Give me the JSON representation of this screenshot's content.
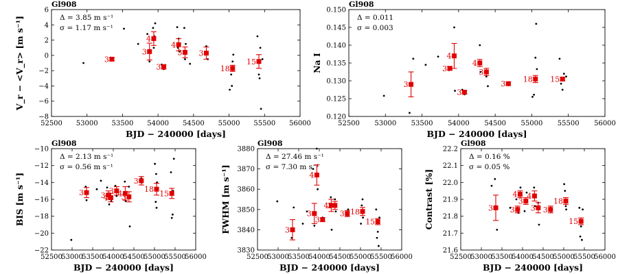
{
  "figure": {
    "xlabel_common": "BJD − 240000 [days]"
  },
  "chart_data": [
    {
      "type": "scatter",
      "title": "Gl908",
      "ylabel": "V_r − <V_r> [m s⁻¹]",
      "xlim": [
        52500,
        56000
      ],
      "ylim": [
        -8,
        6
      ],
      "xticks": [
        52500,
        53000,
        53500,
        54000,
        54500,
        55000,
        55500,
        56000
      ],
      "yticks": [
        -8,
        -6,
        -4,
        -2,
        0,
        2,
        4,
        6
      ],
      "xticklabels": [
        "52500",
        "53000",
        "53500",
        "54000",
        "54500",
        "55000",
        "55500",
        "56000"
      ],
      "yticklabels": [
        "−8",
        "−6",
        "−4",
        "−2",
        "0",
        "2",
        "4",
        "6"
      ],
      "xlabel": "BJD − 240000 [days]",
      "annotations": [
        "Δ = 3.85 m s⁻¹",
        "σ = 1.17 m s⁻¹"
      ],
      "epochs": [
        {
          "x": 53350,
          "y": -0.5,
          "err": 0.2,
          "label": "3"
        },
        {
          "x": 53880,
          "y": 0.5,
          "err": 1.1,
          "label": "3"
        },
        {
          "x": 53940,
          "y": 2.2,
          "err": 0.9,
          "label": "4"
        },
        {
          "x": 54080,
          "y": -1.5,
          "err": 0.3,
          "label": "3"
        },
        {
          "x": 54290,
          "y": 1.4,
          "err": 0.8,
          "label": "4"
        },
        {
          "x": 54380,
          "y": 0.4,
          "err": 0.7,
          "label": "3"
        },
        {
          "x": 54680,
          "y": 0.3,
          "err": 0.8,
          "label": "3"
        },
        {
          "x": 55050,
          "y": -1.7,
          "err": 0.4,
          "label": "18"
        },
        {
          "x": 55420,
          "y": -0.8,
          "err": 0.9,
          "label": "15"
        }
      ],
      "points": [
        [
          52950,
          -1.0
        ],
        [
          53330,
          -0.3
        ],
        [
          53350,
          -0.6
        ],
        [
          53520,
          3.5
        ],
        [
          53720,
          1.5
        ],
        [
          53850,
          2.8
        ],
        [
          53860,
          0.5
        ],
        [
          53880,
          -0.8
        ],
        [
          53930,
          3.6
        ],
        [
          53940,
          1.0
        ],
        [
          53950,
          2.5
        ],
        [
          53960,
          4.2
        ],
        [
          54050,
          -1.2
        ],
        [
          54080,
          -1.8
        ],
        [
          54100,
          -1.4
        ],
        [
          54270,
          3.7
        ],
        [
          54280,
          1.0
        ],
        [
          54290,
          2.2
        ],
        [
          54300,
          0.5
        ],
        [
          54370,
          3.6
        ],
        [
          54380,
          -0.5
        ],
        [
          54390,
          1.5
        ],
        [
          54450,
          -1.1
        ],
        [
          54680,
          1.2
        ],
        [
          54700,
          -0.5
        ],
        [
          55010,
          -4.5
        ],
        [
          55030,
          -2.5
        ],
        [
          55040,
          -4.0
        ],
        [
          55050,
          -0.8
        ],
        [
          55060,
          0.1
        ],
        [
          55400,
          2.5
        ],
        [
          55420,
          -2.5
        ],
        [
          55430,
          -3.0
        ],
        [
          55440,
          1.0
        ],
        [
          55450,
          -7.0
        ],
        [
          55470,
          -0.5
        ]
      ]
    },
    {
      "type": "scatter",
      "title": "Gl908",
      "ylabel": "Na I",
      "xlim": [
        52500,
        56000
      ],
      "ylim": [
        0.12,
        0.15
      ],
      "xticks": [
        52500,
        53000,
        53500,
        54000,
        54500,
        55000,
        55500,
        56000
      ],
      "yticks": [
        0.12,
        0.125,
        0.13,
        0.135,
        0.14,
        0.145,
        0.15
      ],
      "xticklabels": [
        "52500",
        "53000",
        "53500",
        "54000",
        "54500",
        "55000",
        "55500",
        "56000"
      ],
      "yticklabels": [
        "0.120",
        "0.125",
        "0.130",
        "0.135",
        "0.140",
        "0.145",
        "0.150"
      ],
      "xlabel": "BJD − 240000 [days]",
      "annotations": [
        "Δ = 0.011",
        "σ = 0.003"
      ],
      "epochs": [
        {
          "x": 53350,
          "y": 0.129,
          "err": 0.0035,
          "label": "3"
        },
        {
          "x": 53880,
          "y": 0.1335,
          "err": 0.0005,
          "label": "3"
        },
        {
          "x": 53940,
          "y": 0.137,
          "err": 0.0035,
          "label": "4"
        },
        {
          "x": 54080,
          "y": 0.1268,
          "err": 0.0005,
          "label": "3"
        },
        {
          "x": 54290,
          "y": 0.135,
          "err": 0.001,
          "label": "4"
        },
        {
          "x": 54380,
          "y": 0.1325,
          "err": 0.001,
          "label": "3"
        },
        {
          "x": 54680,
          "y": 0.1292,
          "err": 0.0005,
          "label": "3"
        },
        {
          "x": 55050,
          "y": 0.1305,
          "err": 0.001,
          "label": "18"
        },
        {
          "x": 55420,
          "y": 0.1305,
          "err": 0.0005,
          "label": "15"
        }
      ],
      "points": [
        [
          52980,
          0.1258
        ],
        [
          53330,
          0.121
        ],
        [
          53380,
          0.1362
        ],
        [
          53550,
          0.1345
        ],
        [
          53720,
          0.1368
        ],
        [
          53870,
          0.133
        ],
        [
          53940,
          0.145
        ],
        [
          53950,
          0.1272
        ],
        [
          54050,
          0.1275
        ],
        [
          54080,
          0.1262
        ],
        [
          54290,
          0.14
        ],
        [
          54300,
          0.1325
        ],
        [
          54380,
          0.1312
        ],
        [
          54400,
          0.1285
        ],
        [
          54680,
          0.1288
        ],
        [
          54700,
          0.1293
        ],
        [
          55010,
          0.1255
        ],
        [
          55030,
          0.1261
        ],
        [
          55050,
          0.1365
        ],
        [
          55060,
          0.146
        ],
        [
          55070,
          0.1333
        ],
        [
          55380,
          0.1362
        ],
        [
          55400,
          0.1292
        ],
        [
          55420,
          0.1275
        ],
        [
          55440,
          0.132
        ],
        [
          55470,
          0.1312
        ]
      ]
    },
    {
      "type": "scatter",
      "title": "Gl908",
      "ylabel": "BIS [m s⁻¹]",
      "xlim": [
        52500,
        56000
      ],
      "ylim": [
        -22,
        -10
      ],
      "xticks": [
        52500,
        53000,
        53500,
        54000,
        54500,
        55000,
        55500,
        56000
      ],
      "yticks": [
        -22,
        -20,
        -18,
        -16,
        -14,
        -12,
        -10
      ],
      "xticklabels": [
        "52500",
        "53000",
        "53500",
        "54000",
        "54500",
        "55000",
        "55500",
        "56000"
      ],
      "yticklabels": [
        "−22",
        "−20",
        "−18",
        "−16",
        "−14",
        "−12",
        "−10"
      ],
      "xlabel": "BJD − 240000 [days]",
      "annotations": [
        "Δ = 2.13 m s⁻¹",
        "σ = 0.56 m s⁻¹"
      ],
      "epochs": [
        {
          "x": 53350,
          "y": -15.2,
          "err": 0.6,
          "label": "3"
        },
        {
          "x": 53880,
          "y": -15.5,
          "err": 0.5,
          "label": "3"
        },
        {
          "x": 53940,
          "y": -15.8,
          "err": 0.5,
          "label": "4"
        },
        {
          "x": 54080,
          "y": -15.0,
          "err": 0.5,
          "label": "3"
        },
        {
          "x": 54290,
          "y": -15.3,
          "err": 0.8,
          "label": "4"
        },
        {
          "x": 54380,
          "y": -15.7,
          "err": 0.6,
          "label": "3"
        },
        {
          "x": 54680,
          "y": -13.8,
          "err": 0.5,
          "label": "3"
        },
        {
          "x": 55050,
          "y": -14.8,
          "err": 0.7,
          "label": "18"
        },
        {
          "x": 55420,
          "y": -15.3,
          "err": 0.6,
          "label": "15"
        }
      ],
      "points": [
        [
          52980,
          -20.8
        ],
        [
          53330,
          -14.5
        ],
        [
          53350,
          -16.1
        ],
        [
          53600,
          -14.8
        ],
        [
          53700,
          -13.8
        ],
        [
          53850,
          -14.6
        ],
        [
          53900,
          -16.6
        ],
        [
          53950,
          -16.2
        ],
        [
          54050,
          -14.4
        ],
        [
          54080,
          -15.6
        ],
        [
          54280,
          -13.9
        ],
        [
          54300,
          -16.2
        ],
        [
          54380,
          -14.5
        ],
        [
          54400,
          -19.2
        ],
        [
          54680,
          -13.5
        ],
        [
          54700,
          -14.0
        ],
        [
          55010,
          -11.8
        ],
        [
          55030,
          -16.3
        ],
        [
          55040,
          -13.0
        ],
        [
          55050,
          -17.0
        ],
        [
          55060,
          -14.0
        ],
        [
          55400,
          -12.8
        ],
        [
          55420,
          -18.2
        ],
        [
          55440,
          -17.8
        ],
        [
          55450,
          -15.0
        ],
        [
          55470,
          -11.2
        ]
      ]
    },
    {
      "type": "scatter",
      "title": "Gl908",
      "ylabel": "FWHM [m s⁻¹]",
      "xlim": [
        52500,
        56000
      ],
      "ylim": [
        3830,
        3880
      ],
      "xticks": [
        52500,
        53000,
        53500,
        54000,
        54500,
        55000,
        55500,
        56000
      ],
      "yticks": [
        3830,
        3840,
        3850,
        3860,
        3870,
        3880
      ],
      "xticklabels": [
        "52500",
        "53000",
        "53500",
        "54000",
        "54500",
        "55000",
        "55500",
        "56000"
      ],
      "yticklabels": [
        "3830",
        "3840",
        "3850",
        "3860",
        "3870",
        "3880"
      ],
      "xlabel": "BJD − 240000 [days]",
      "annotations": [
        "Δ = 27.46 m s⁻¹",
        "σ = 7.30 m s⁻¹"
      ],
      "epochs": [
        {
          "x": 53350,
          "y": 3840,
          "err": 5,
          "label": "3"
        },
        {
          "x": 53880,
          "y": 3848,
          "err": 5,
          "label": "3"
        },
        {
          "x": 53940,
          "y": 3867,
          "err": 5,
          "label": "4"
        },
        {
          "x": 54080,
          "y": 3845,
          "err": 1,
          "label": "3"
        },
        {
          "x": 54290,
          "y": 3852,
          "err": 3,
          "label": "4"
        },
        {
          "x": 54380,
          "y": 3852,
          "err": 2,
          "label": "3"
        },
        {
          "x": 54680,
          "y": 3848,
          "err": 1.5,
          "label": "3"
        },
        {
          "x": 55050,
          "y": 3849,
          "err": 2,
          "label": "18"
        },
        {
          "x": 55420,
          "y": 3844,
          "err": 1.5,
          "label": "15"
        }
      ],
      "points": [
        [
          52980,
          3854
        ],
        [
          53330,
          3836
        ],
        [
          53380,
          3851
        ],
        [
          53600,
          3843
        ],
        [
          53700,
          3849
        ],
        [
          53850,
          3870
        ],
        [
          53880,
          3842
        ],
        [
          53940,
          3880
        ],
        [
          53960,
          3860
        ],
        [
          54080,
          3846
        ],
        [
          54280,
          3856
        ],
        [
          54300,
          3840
        ],
        [
          54380,
          3855
        ],
        [
          54400,
          3849
        ],
        [
          54680,
          3847
        ],
        [
          54700,
          3850
        ],
        [
          55010,
          3843
        ],
        [
          55030,
          3852
        ],
        [
          55050,
          3855
        ],
        [
          55060,
          3846
        ],
        [
          55380,
          3850
        ],
        [
          55400,
          3836
        ],
        [
          55420,
          3839
        ],
        [
          55440,
          3832
        ],
        [
          55460,
          3846
        ]
      ]
    },
    {
      "type": "scatter",
      "title": "Gl908",
      "ylabel": "Contrast [%]",
      "xlim": [
        52500,
        56000
      ],
      "ylim": [
        21.6,
        22.2
      ],
      "xticks": [
        52500,
        53000,
        53500,
        54000,
        54500,
        55000,
        55500,
        56000
      ],
      "yticks": [
        21.6,
        21.7,
        21.8,
        21.9,
        22.0,
        22.1,
        22.2
      ],
      "xticklabels": [
        "52500",
        "53000",
        "53500",
        "54000",
        "54500",
        "55000",
        "55500",
        "56000"
      ],
      "yticklabels": [
        "21.6",
        "21.7",
        "21.8",
        "21.9",
        "22.0",
        "22.1",
        "22.2"
      ],
      "xlabel": "BJD − 240000 [days]",
      "annotations": [
        "Δ = 0.16 %",
        "σ = 0.05 %"
      ],
      "epochs": [
        {
          "x": 53350,
          "y": 21.85,
          "err": 0.075,
          "label": "3"
        },
        {
          "x": 53880,
          "y": 21.84,
          "err": 0.02,
          "label": "3"
        },
        {
          "x": 53940,
          "y": 21.93,
          "err": 0.02,
          "label": "4"
        },
        {
          "x": 54080,
          "y": 21.89,
          "err": 0.02,
          "label": "3"
        },
        {
          "x": 54290,
          "y": 21.92,
          "err": 0.03,
          "label": "4"
        },
        {
          "x": 54380,
          "y": 21.85,
          "err": 0.03,
          "label": "3"
        },
        {
          "x": 54680,
          "y": 21.84,
          "err": 0.02,
          "label": "3"
        },
        {
          "x": 55050,
          "y": 21.89,
          "err": 0.02,
          "label": "18"
        },
        {
          "x": 55420,
          "y": 21.77,
          "err": 0.02,
          "label": "15"
        }
      ],
      "points": [
        [
          53250,
          21.98
        ],
        [
          53330,
          22.02
        ],
        [
          53380,
          21.72
        ],
        [
          53700,
          21.85
        ],
        [
          53850,
          21.9
        ],
        [
          53900,
          21.82
        ],
        [
          53950,
          21.97
        ],
        [
          54050,
          21.83
        ],
        [
          54100,
          21.94
        ],
        [
          54280,
          21.97
        ],
        [
          54300,
          21.86
        ],
        [
          54380,
          21.88
        ],
        [
          54400,
          21.75
        ],
        [
          54680,
          21.85
        ],
        [
          54700,
          21.83
        ],
        [
          55010,
          21.99
        ],
        [
          55030,
          21.95
        ],
        [
          55050,
          21.86
        ],
        [
          55060,
          21.84
        ],
        [
          55380,
          21.85
        ],
        [
          55400,
          21.68
        ],
        [
          55420,
          21.74
        ],
        [
          55440,
          21.66
        ],
        [
          55460,
          21.84
        ]
      ]
    }
  ]
}
